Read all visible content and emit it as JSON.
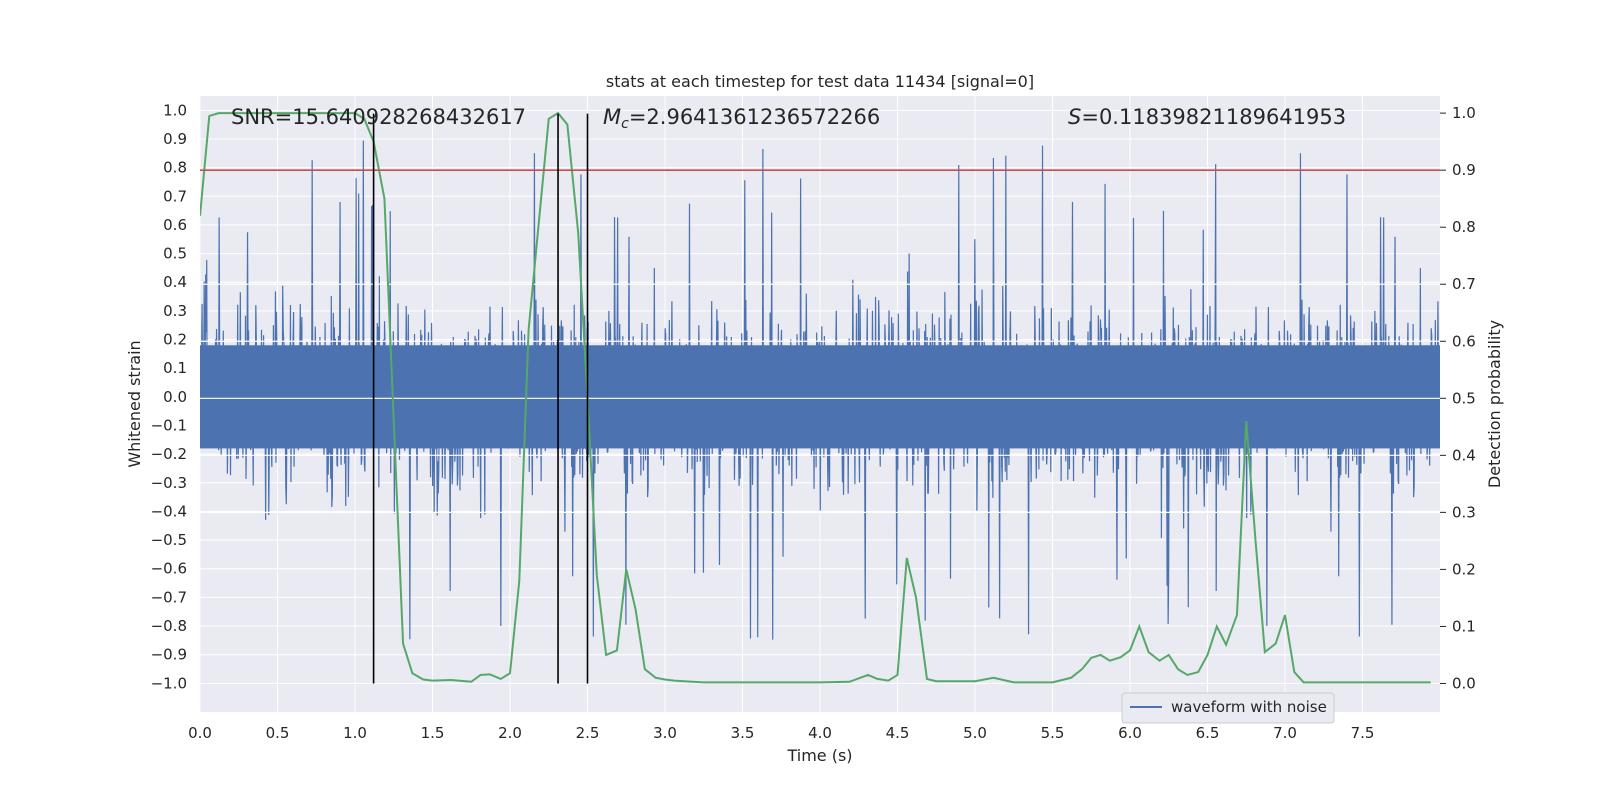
{
  "chart_data": {
    "type": "line",
    "title": "stats at each timestep for test data 11434 [signal=0]",
    "xlabel": "Time (s)",
    "ylabel": "Whitened strain",
    "y2label": "Detection probability",
    "xlim": [
      0.0,
      8.0
    ],
    "ylim": [
      -1.1,
      1.05
    ],
    "y2lim": [
      -0.05,
      1.03
    ],
    "xticks": [
      0.0,
      0.5,
      1.0,
      1.5,
      2.0,
      2.5,
      3.0,
      3.5,
      4.0,
      4.5,
      5.0,
      5.5,
      6.0,
      6.5,
      7.0,
      7.5
    ],
    "yticks": [
      -1.0,
      -0.9,
      -0.8,
      -0.7,
      -0.6,
      -0.5,
      -0.4,
      -0.3,
      -0.2,
      -0.1,
      0.0,
      0.1,
      0.2,
      0.3,
      0.4,
      0.5,
      0.6,
      0.7,
      0.8,
      0.9,
      1.0
    ],
    "y2ticks": [
      0.0,
      0.1,
      0.2,
      0.3,
      0.4,
      0.5,
      0.6,
      0.7,
      0.8,
      0.9,
      1.0
    ],
    "grid": true,
    "legend_position": "bottom-right",
    "annotations": {
      "snr": "SNR=15.640928268432617",
      "mc_symbol": "M",
      "mc_sub": "c",
      "mc_value": "=2.9641361236572266",
      "s_symbol": "S",
      "s_value": "=0.11839821189641953"
    },
    "threshold": {
      "axis": "right",
      "value": 0.9,
      "color": "#c44e52"
    },
    "vertical_lines": {
      "x": [
        1.12,
        2.31,
        2.5
      ],
      "color": "#000000"
    },
    "series": [
      {
        "name": "waveform with noise",
        "axis": "left",
        "color": "#4c72b0",
        "kind": "noise",
        "amplitude_core": 0.5,
        "spike_max": [
          0.95,
          -1.0
        ],
        "t_range": [
          0.0,
          8.0
        ]
      },
      {
        "axis": "right",
        "color": "#55a868",
        "x": [
          0.0,
          0.06,
          0.12,
          0.25,
          0.5,
          0.75,
          1.0,
          1.06,
          1.12,
          1.19,
          1.31,
          1.37,
          1.44,
          1.5,
          1.62,
          1.75,
          1.81,
          1.87,
          1.94,
          2.0,
          2.06,
          2.12,
          2.19,
          2.25,
          2.31,
          2.37,
          2.44,
          2.5,
          2.56,
          2.62,
          2.69,
          2.75,
          2.81,
          2.87,
          2.94,
          3.0,
          3.06,
          3.12,
          3.25,
          3.5,
          3.75,
          4.0,
          4.19,
          4.31,
          4.37,
          4.44,
          4.5,
          4.56,
          4.62,
          4.69,
          4.75,
          4.81,
          4.87,
          5.0,
          5.12,
          5.25,
          5.37,
          5.5,
          5.62,
          5.69,
          5.75,
          5.81,
          5.87,
          5.94,
          6.0,
          6.06,
          6.12,
          6.19,
          6.25,
          6.31,
          6.37,
          6.44,
          6.5,
          6.56,
          6.62,
          6.69,
          6.75,
          6.81,
          6.87,
          6.94,
          7.0,
          7.06,
          7.12,
          7.19,
          7.25,
          7.5,
          7.75,
          7.87,
          7.94
        ],
        "y": [
          0.82,
          0.995,
          1.0,
          1.0,
          1.0,
          1.0,
          1.0,
          0.99,
          0.95,
          0.85,
          0.07,
          0.018,
          0.007,
          0.005,
          0.006,
          0.003,
          0.015,
          0.016,
          0.008,
          0.018,
          0.18,
          0.62,
          0.82,
          0.99,
          1.0,
          0.98,
          0.79,
          0.5,
          0.19,
          0.05,
          0.058,
          0.2,
          0.13,
          0.025,
          0.01,
          0.007,
          0.005,
          0.004,
          0.002,
          0.002,
          0.002,
          0.002,
          0.003,
          0.015,
          0.008,
          0.005,
          0.015,
          0.22,
          0.15,
          0.008,
          0.004,
          0.004,
          0.004,
          0.004,
          0.01,
          0.002,
          0.002,
          0.002,
          0.01,
          0.025,
          0.045,
          0.05,
          0.04,
          0.046,
          0.058,
          0.1,
          0.055,
          0.04,
          0.05,
          0.025,
          0.015,
          0.02,
          0.05,
          0.1,
          0.068,
          0.12,
          0.46,
          0.25,
          0.055,
          0.07,
          0.12,
          0.02,
          0.002,
          0.002,
          0.002,
          0.002,
          0.002,
          0.002,
          0.002
        ]
      }
    ]
  }
}
